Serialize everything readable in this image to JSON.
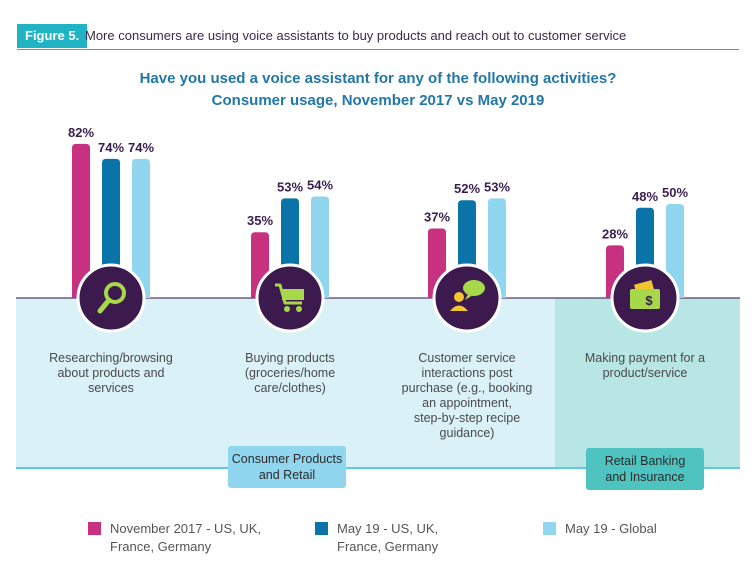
{
  "figure": {
    "badge": "Figure 5.",
    "caption": "More consumers are using voice assistants to buy products and reach out to customer service"
  },
  "colors": {
    "series_nov17": "#c8317f",
    "series_may19_us": "#0a73a8",
    "series_may19_global": "#8fd6ee",
    "header": "#1fb3c4",
    "title": "#2277a6",
    "icon_circle": "#3d1a4e",
    "icon_green": "#a6d84a",
    "band_consumer": "#daf1f8",
    "band_retail": "#b8e6e4",
    "label_consumer": "#8fd6ee",
    "label_retail": "#4ec3c0"
  },
  "chart_data": {
    "type": "bar",
    "title": "Have you used a voice assistant for any of the following activities?",
    "subtitle": "Consumer usage, November 2017 vs May 2019",
    "categories": [
      "Researching/browsing about products and services",
      "Buying products (groceries/home care/clothes)",
      "Customer service interactions post purchase (e.g., booking an appointment, step-by-step recipe guidance)",
      "Making payment for a product/service"
    ],
    "category_lines": [
      [
        "Researching/browsing",
        "about products and",
        "services"
      ],
      [
        "Buying products",
        "(groceries/home",
        "care/clothes)"
      ],
      [
        "Customer service",
        "interactions post",
        "purchase (e.g., booking",
        "an appointment,",
        "step-by-step recipe",
        "guidance)"
      ],
      [
        "Making payment for a",
        "product/service"
      ]
    ],
    "icons": [
      "magnifier-icon",
      "shopping-cart-icon",
      "chat-person-icon",
      "wallet-icon"
    ],
    "series": [
      {
        "name": "November 2017 - US, UK, France, Germany",
        "legend_lines": [
          "November 2017 - US, UK,",
          "France, Germany"
        ],
        "values": [
          82,
          35,
          37,
          28
        ]
      },
      {
        "name": "May 19 - US, UK, France, Germany",
        "legend_lines": [
          "May 19 - US, UK,",
          "France, Germany"
        ],
        "values": [
          74,
          53,
          52,
          48
        ]
      },
      {
        "name": "May 19 - Global",
        "legend_lines": [
          "May 19 - Global"
        ],
        "values": [
          74,
          54,
          53,
          50
        ]
      }
    ],
    "value_labels": [
      [
        "82%",
        "74%",
        "74%"
      ],
      [
        "35%",
        "53%",
        "54%"
      ],
      [
        "37%",
        "52%",
        "53%"
      ],
      [
        "28%",
        "48%",
        "50%"
      ]
    ],
    "groups": [
      {
        "label_lines": [
          "Consumer Products",
          "and Retail"
        ],
        "categories": [
          0,
          1,
          2
        ]
      },
      {
        "label_lines": [
          "Retail Banking",
          "and Insurance"
        ],
        "categories": [
          3
        ]
      }
    ],
    "legend_position": "bottom",
    "grid": false
  }
}
